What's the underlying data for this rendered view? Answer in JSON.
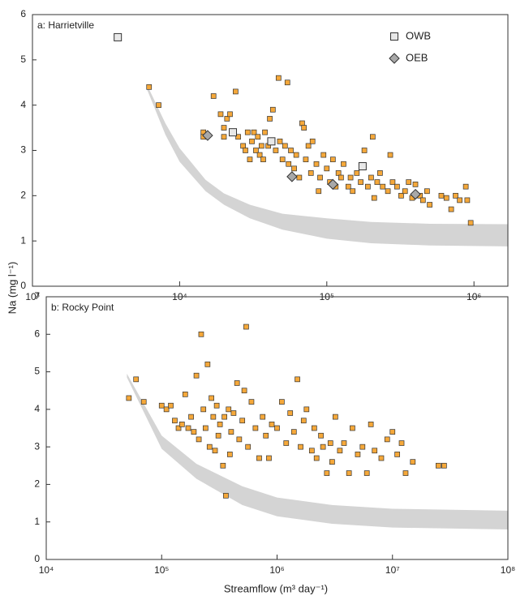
{
  "chart_data": [
    {
      "type": "scatter",
      "title": "a: Harrietville",
      "ylabel": "Na (mg l⁻¹)",
      "xscale": "log",
      "xlim": [
        1000,
        1700000
      ],
      "ylim": [
        0,
        6
      ],
      "xticks": [
        {
          "value": 1000,
          "label": "10³"
        },
        {
          "value": 10000,
          "label": "10⁴"
        },
        {
          "value": 100000,
          "label": "10⁵"
        },
        {
          "value": 1000000,
          "label": "10⁶"
        }
      ],
      "yticks": [
        0,
        1,
        2,
        3,
        4,
        5,
        6
      ],
      "legend": "top right",
      "envelope": {
        "color": "#d4d4d4",
        "x": [
          6000,
          8000,
          10000,
          15000,
          20000,
          30000,
          50000,
          100000,
          200000,
          500000,
          1700000
        ],
        "upper": [
          4.45,
          3.6,
          3.05,
          2.35,
          2.05,
          1.8,
          1.6,
          1.5,
          1.42,
          1.38,
          1.37
        ],
        "lower": [
          4.35,
          3.35,
          2.75,
          2.1,
          1.8,
          1.5,
          1.25,
          1.05,
          0.95,
          0.9,
          0.88
        ]
      },
      "series": [
        {
          "color": "#f5a83a",
          "marker": "square",
          "x": [
            6200,
            7200,
            14500,
            14500,
            17000,
            19000,
            20000,
            20000,
            21000,
            22000,
            24000,
            25000,
            27000,
            28000,
            29000,
            30000,
            31000,
            32000,
            33000,
            34000,
            35000,
            36000,
            37000,
            38000,
            40000,
            41000,
            43000,
            45000,
            47000,
            48000,
            50000,
            52000,
            54000,
            55000,
            57000,
            60000,
            62000,
            65000,
            68000,
            70000,
            72000,
            75000,
            78000,
            80000,
            85000,
            88000,
            90000,
            95000,
            100000,
            105000,
            110000,
            115000,
            120000,
            125000,
            130000,
            140000,
            145000,
            150000,
            160000,
            170000,
            180000,
            190000,
            200000,
            205000,
            210000,
            220000,
            230000,
            240000,
            260000,
            270000,
            280000,
            300000,
            320000,
            340000,
            360000,
            380000,
            400000,
            430000,
            450000,
            480000,
            500000,
            600000,
            650000,
            700000,
            750000,
            800000,
            880000,
            900000,
            950000
          ],
          "values": [
            4.4,
            4.0,
            3.4,
            3.3,
            4.2,
            3.8,
            3.5,
            3.3,
            3.7,
            3.8,
            4.3,
            3.3,
            3.1,
            3.0,
            3.4,
            2.8,
            3.2,
            3.4,
            3.0,
            3.3,
            2.9,
            3.1,
            2.8,
            3.4,
            3.1,
            3.7,
            3.9,
            3.0,
            4.6,
            3.2,
            2.8,
            3.1,
            4.5,
            2.7,
            3.0,
            2.6,
            2.9,
            2.4,
            3.6,
            3.5,
            2.8,
            3.1,
            2.5,
            3.2,
            2.7,
            2.1,
            2.4,
            2.9,
            2.6,
            2.3,
            2.8,
            2.2,
            2.5,
            2.4,
            2.7,
            2.2,
            2.4,
            2.1,
            2.5,
            2.3,
            3.0,
            2.2,
            2.4,
            3.3,
            1.95,
            2.3,
            2.5,
            2.2,
            2.1,
            2.9,
            2.3,
            2.2,
            2.0,
            2.1,
            2.3,
            1.95,
            2.25,
            2.0,
            1.9,
            2.1,
            1.8,
            2.0,
            1.95,
            1.7,
            2.0,
            1.9,
            2.2,
            1.9,
            1.4
          ]
        },
        {
          "name": "OWB",
          "color": "#e8e8e8",
          "marker": "square",
          "x": [
            3800,
            23000,
            42000,
            175000
          ],
          "values": [
            5.5,
            3.4,
            3.2,
            2.65
          ]
        },
        {
          "name": "OEB",
          "color": "#a8a8a8",
          "marker": "diamond",
          "x": [
            15500,
            58000,
            110000,
            400000
          ],
          "values": [
            3.33,
            2.42,
            2.25,
            2.03
          ]
        }
      ]
    },
    {
      "type": "scatter",
      "title": "b: Rocky Point",
      "xlabel": "Streamflow (m³ day⁻¹)",
      "xscale": "log",
      "xlim": [
        10000,
        100000000
      ],
      "ylim": [
        0,
        7
      ],
      "xticks": [
        {
          "value": 10000,
          "label": "10⁴"
        },
        {
          "value": 100000,
          "label": "10⁵"
        },
        {
          "value": 1000000,
          "label": "10⁶"
        },
        {
          "value": 10000000,
          "label": "10⁷"
        },
        {
          "value": 100000000,
          "label": "10⁸"
        }
      ],
      "yticks": [
        0,
        1,
        2,
        3,
        4,
        5,
        6,
        7
      ],
      "envelope": {
        "color": "#d4d4d4",
        "x": [
          50000,
          100000,
          200000,
          500000,
          1000000,
          3000000,
          10000000,
          100000000
        ],
        "upper": [
          4.95,
          3.3,
          2.55,
          1.95,
          1.65,
          1.45,
          1.35,
          1.3
        ],
        "lower": [
          4.85,
          2.95,
          2.15,
          1.45,
          1.15,
          0.95,
          0.85,
          0.8
        ]
      },
      "series": [
        {
          "color": "#f5a83a",
          "marker": "square",
          "x": [
            52000,
            60000,
            70000,
            100000,
            110000,
            120000,
            130000,
            140000,
            150000,
            160000,
            170000,
            180000,
            190000,
            200000,
            210000,
            220000,
            230000,
            240000,
            250000,
            260000,
            270000,
            280000,
            290000,
            300000,
            310000,
            320000,
            340000,
            350000,
            360000,
            380000,
            390000,
            400000,
            420000,
            450000,
            470000,
            500000,
            520000,
            540000,
            560000,
            600000,
            650000,
            700000,
            750000,
            800000,
            850000,
            900000,
            1000000,
            1100000,
            1200000,
            1300000,
            1400000,
            1500000,
            1600000,
            1700000,
            1800000,
            2000000,
            2100000,
            2200000,
            2400000,
            2500000,
            2700000,
            2900000,
            3000000,
            3200000,
            3500000,
            3800000,
            4200000,
            4500000,
            5000000,
            5500000,
            6000000,
            6500000,
            7000000,
            8000000,
            9000000,
            10000000,
            11000000,
            12000000,
            13000000,
            15000000,
            25000000,
            28000000
          ],
          "values": [
            4.3,
            4.8,
            4.2,
            4.1,
            4.0,
            4.1,
            3.7,
            3.5,
            3.6,
            4.4,
            3.5,
            3.8,
            3.4,
            4.9,
            3.2,
            6.0,
            4.0,
            3.5,
            5.2,
            3.0,
            4.3,
            3.8,
            2.9,
            4.1,
            3.3,
            3.6,
            2.5,
            3.8,
            1.7,
            4.0,
            2.8,
            3.4,
            3.9,
            4.7,
            3.2,
            3.7,
            4.5,
            6.2,
            3.0,
            4.2,
            3.5,
            2.7,
            3.8,
            3.3,
            2.7,
            3.6,
            3.5,
            4.2,
            3.1,
            3.9,
            3.4,
            4.8,
            3.0,
            3.7,
            4.0,
            2.9,
            3.5,
            2.7,
            3.3,
            3.0,
            2.3,
            3.1,
            2.6,
            3.8,
            2.9,
            3.1,
            2.3,
            3.5,
            2.8,
            3.0,
            2.3,
            3.6,
            2.9,
            2.7,
            3.2,
            3.4,
            2.8,
            3.1,
            2.3,
            2.6,
            2.5,
            2.5
          ]
        }
      ]
    }
  ]
}
